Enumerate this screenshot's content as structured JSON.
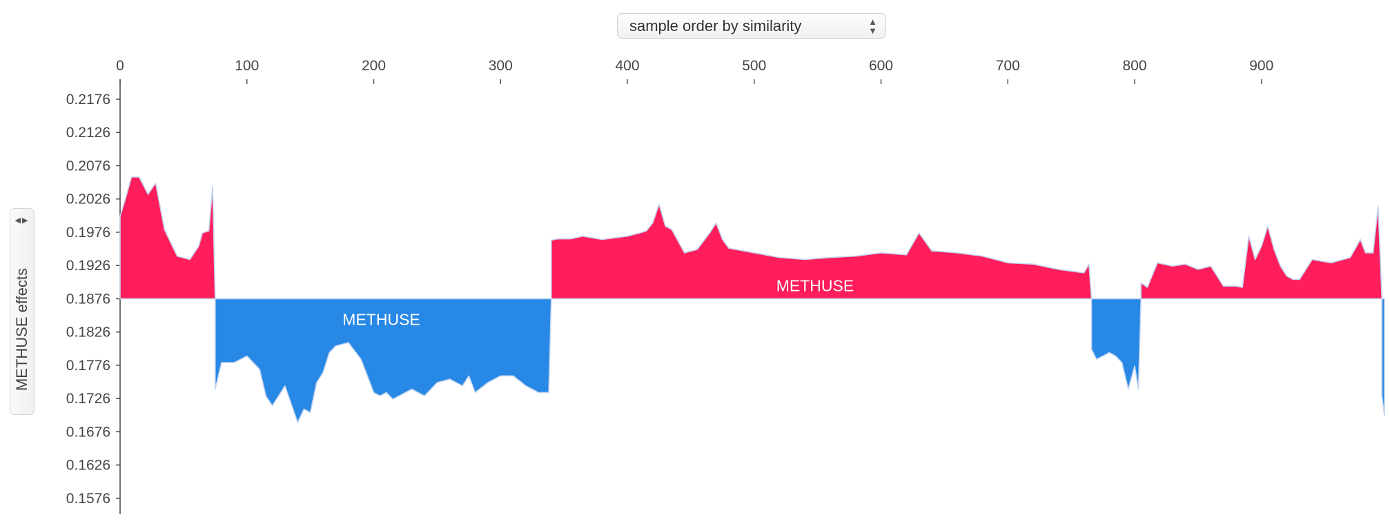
{
  "controls": {
    "order_select": {
      "value": "sample order by similarity"
    },
    "yaxis_select": {
      "value": "METHUSE effects"
    }
  },
  "colors": {
    "positive": "#ff1d5b",
    "negative": "#2788e5",
    "outline": "#c3d4ef"
  },
  "chart_data": {
    "type": "area",
    "baseline": 0.1876,
    "xlim": [
      0,
      997
    ],
    "ylim": [
      0.1552,
      0.2206
    ],
    "x_ticks": [
      0,
      100,
      200,
      300,
      400,
      500,
      600,
      700,
      800,
      900
    ],
    "y_ticks": [
      0.2176,
      0.2126,
      0.2076,
      0.2026,
      0.1976,
      0.1926,
      0.1876,
      0.1826,
      0.1776,
      0.1726,
      0.1676,
      0.1626,
      0.1576
    ],
    "y_tick_labels": [
      "0.2176",
      "0.2126",
      "0.2076",
      "0.2026",
      "0.1976",
      "0.1926",
      "0.1876",
      "0.1826",
      "0.1776",
      "0.1726",
      "0.1676",
      "0.1626",
      "0.1576"
    ],
    "ylabel": "METHUSE effects",
    "segments_note_labels": {
      "positive": "METHUSE",
      "negative": "METHUSE"
    },
    "label_positions_x": {
      "positive": 548,
      "negative": 206
    },
    "series": [
      {
        "name": "METHUSE",
        "x": [
          0,
          4,
          9,
          15,
          22,
          28,
          35,
          45,
          55,
          62,
          65,
          70,
          73,
          75,
          80,
          90,
          100,
          110,
          115,
          120,
          130,
          140,
          145,
          150,
          155,
          160,
          165,
          170,
          180,
          190,
          200,
          205,
          210,
          215,
          220,
          230,
          240,
          250,
          260,
          270,
          275,
          280,
          290,
          300,
          310,
          320,
          330,
          338,
          340,
          345,
          355,
          365,
          380,
          400,
          410,
          415,
          420,
          425,
          430,
          435,
          445,
          455,
          465,
          470,
          475,
          480,
          500,
          520,
          540,
          560,
          580,
          600,
          620,
          630,
          640,
          660,
          680,
          700,
          720,
          740,
          760,
          764,
          766,
          770,
          775,
          780,
          785,
          790,
          795,
          800,
          803,
          805,
          810,
          818,
          830,
          840,
          850,
          860,
          870,
          880,
          885,
          890,
          895,
          900,
          905,
          910,
          915,
          920,
          925,
          930,
          940,
          955,
          970,
          978,
          982,
          988,
          992,
          995,
          997
        ],
        "values": [
          0.2,
          0.2025,
          0.2059,
          0.2059,
          0.2033,
          0.205,
          0.198,
          0.194,
          0.1935,
          0.1955,
          0.1975,
          0.1978,
          0.2045,
          0.174,
          0.178,
          0.178,
          0.179,
          0.177,
          0.173,
          0.1715,
          0.1745,
          0.169,
          0.171,
          0.1705,
          0.175,
          0.1765,
          0.1795,
          0.1805,
          0.181,
          0.1785,
          0.1735,
          0.173,
          0.1735,
          0.1725,
          0.173,
          0.174,
          0.173,
          0.175,
          0.1755,
          0.1745,
          0.176,
          0.1735,
          0.175,
          0.176,
          0.176,
          0.1745,
          0.1735,
          0.1735,
          0.1964,
          0.1966,
          0.1966,
          0.197,
          0.1965,
          0.197,
          0.1975,
          0.1978,
          0.199,
          0.2018,
          0.1985,
          0.198,
          0.1945,
          0.195,
          0.1975,
          0.199,
          0.1965,
          0.1952,
          0.1945,
          0.1938,
          0.1935,
          0.1938,
          0.194,
          0.1945,
          0.1942,
          0.1975,
          0.1948,
          0.1945,
          0.194,
          0.193,
          0.1928,
          0.192,
          0.1915,
          0.1928,
          0.18,
          0.1785,
          0.179,
          0.1795,
          0.179,
          0.178,
          0.174,
          0.1775,
          0.174,
          0.19,
          0.1893,
          0.193,
          0.1925,
          0.1928,
          0.192,
          0.1925,
          0.1895,
          0.1895,
          0.1893,
          0.197,
          0.1935,
          0.1955,
          0.1985,
          0.195,
          0.1925,
          0.191,
          0.1905,
          0.1905,
          0.1935,
          0.193,
          0.1938,
          0.1965,
          0.1945,
          0.1945,
          0.2015,
          0.173,
          0.17
        ]
      }
    ]
  }
}
